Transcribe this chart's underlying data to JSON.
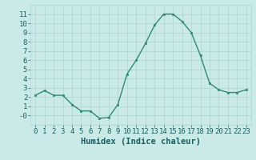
{
  "x": [
    0,
    1,
    2,
    3,
    4,
    5,
    6,
    7,
    8,
    9,
    10,
    11,
    12,
    13,
    14,
    15,
    16,
    17,
    18,
    19,
    20,
    21,
    22,
    23
  ],
  "y": [
    2.2,
    2.7,
    2.2,
    2.2,
    1.2,
    0.5,
    0.5,
    -0.3,
    -0.2,
    1.2,
    4.5,
    6.0,
    7.8,
    9.8,
    11.0,
    11.0,
    10.2,
    9.0,
    6.5,
    3.5,
    2.8,
    2.5,
    2.5,
    2.8
  ],
  "line_color": "#2e8b74",
  "marker_color": "#2e8b74",
  "bg_color": "#caeae7",
  "grid_color": "#aed4d0",
  "xlabel": "Humidex (Indice chaleur)",
  "ylim": [
    -1,
    12
  ],
  "xlim": [
    -0.5,
    23.5
  ],
  "yticks": [
    0,
    1,
    2,
    3,
    4,
    5,
    6,
    7,
    8,
    9,
    10,
    11
  ],
  "xticks": [
    0,
    1,
    2,
    3,
    4,
    5,
    6,
    7,
    8,
    9,
    10,
    11,
    12,
    13,
    14,
    15,
    16,
    17,
    18,
    19,
    20,
    21,
    22,
    23
  ],
  "font_color": "#1a5f5f",
  "xlabel_fontsize": 7.5,
  "tick_fontsize": 6.5
}
